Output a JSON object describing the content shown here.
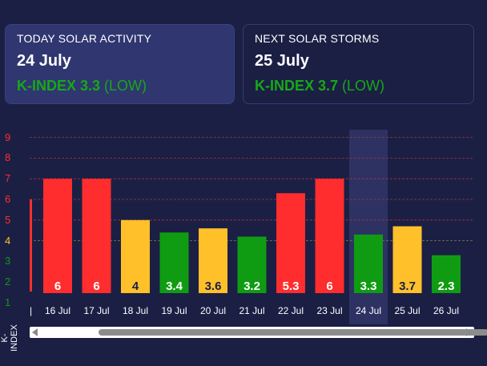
{
  "today": {
    "title": "TODAY SOLAR ACTIVITY",
    "date": "24 July",
    "kindex": "K-INDEX 3.3",
    "level": "(LOW)"
  },
  "next": {
    "title": "NEXT SOLAR STORMS",
    "date": "25 July",
    "kindex": "K-INDEX 3.7",
    "level": "(LOW)"
  },
  "colors": {
    "red": "#ff2d2d",
    "yellow": "#ffc02a",
    "green": "#0f9c12",
    "background": "#1b1f44"
  },
  "chart_data": {
    "type": "bar",
    "ylabel": "K-INDEX",
    "ylim": [
      1,
      9
    ],
    "yticks": [
      "1",
      "2",
      "3",
      "4",
      "5",
      "6",
      "7",
      "8",
      "9"
    ],
    "highlighted_category": "24 Jul",
    "categories": [
      "16 Jul",
      "17 Jul",
      "18 Jul",
      "19 Jul",
      "20 Jul",
      "21 Jul",
      "22 Jul",
      "23 Jul",
      "24 Jul",
      "25 Jul",
      "26 Jul"
    ],
    "values": [
      6,
      6,
      4,
      3.4,
      3.6,
      3.2,
      5.3,
      6,
      3.3,
      3.7,
      2.3
    ],
    "labels": [
      "6",
      "6",
      "4",
      "3.4",
      "3.6",
      "3.2",
      "5.3",
      "6",
      "3.3",
      "3.7",
      "2.3"
    ],
    "bar_colors": [
      "red",
      "red",
      "yellow",
      "green",
      "yellow",
      "green",
      "red",
      "red",
      "green",
      "yellow",
      "green"
    ]
  }
}
